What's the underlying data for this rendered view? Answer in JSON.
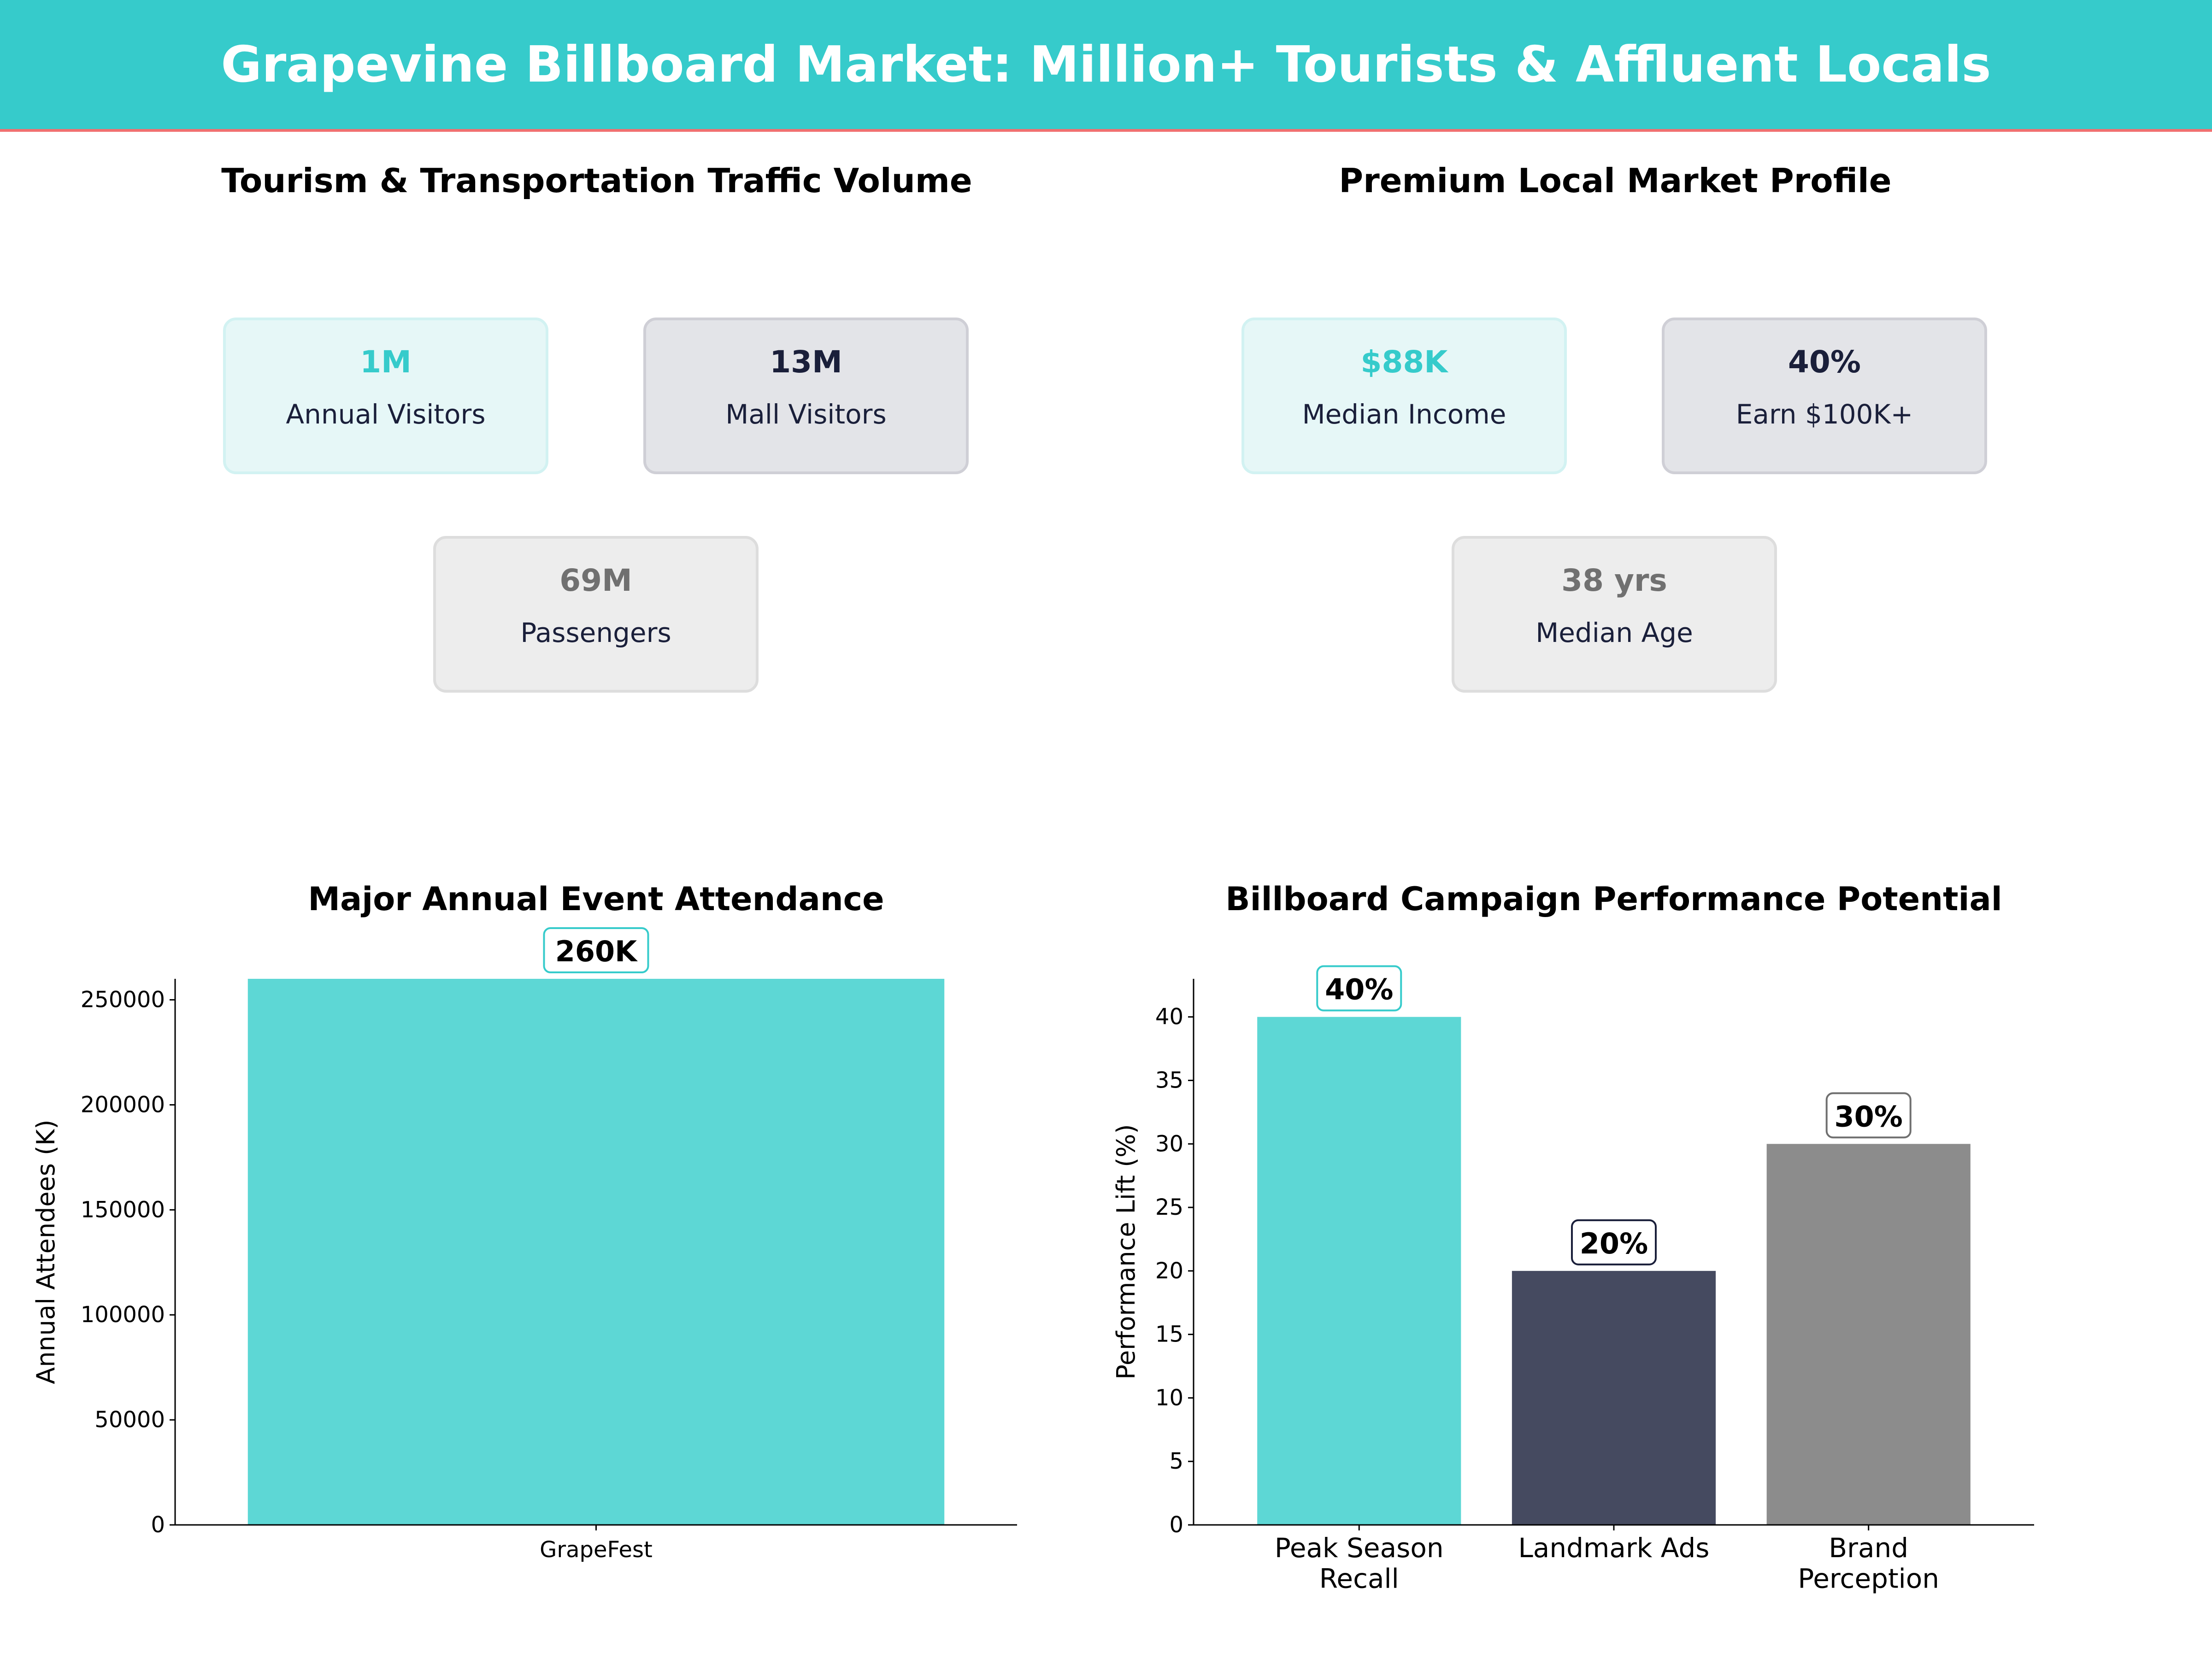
{
  "title": "Grapevine Billboard Market: Million+ Tourists & Affluent Locals",
  "colors": {
    "teal": "#36CBCB",
    "navy": "#1a1f3a",
    "gray": "#707070",
    "red_line": "#F07070"
  },
  "tourism": {
    "title": "Tourism & Transportation Traffic Volume",
    "cards": [
      {
        "value": "1M",
        "label": "Annual Visitors"
      },
      {
        "value": "13M",
        "label": "Mall Visitors"
      },
      {
        "value": "69M",
        "label": "Passengers"
      }
    ]
  },
  "local": {
    "title": "Premium Local Market Profile",
    "cards": [
      {
        "value": "$88K",
        "label": "Median Income"
      },
      {
        "value": "40%",
        "label": "Earn $100K+"
      },
      {
        "value": "38 yrs",
        "label": "Median Age"
      }
    ]
  },
  "chart_data": [
    {
      "type": "bar",
      "title": "Major Annual Event Attendance",
      "xlabel": "",
      "ylabel": "Annual Attendees (K)",
      "categories": [
        "GrapeFest"
      ],
      "values": [
        260000
      ],
      "data_labels": [
        "260K"
      ],
      "ylim": [
        0,
        260000
      ],
      "yticks": [
        0,
        50000,
        100000,
        150000,
        200000,
        250000
      ],
      "grid": false,
      "colors": [
        "#5DD7D5"
      ],
      "label_borders": [
        "#36CBCB"
      ]
    },
    {
      "type": "bar",
      "title": "Billboard Campaign Performance Potential",
      "xlabel": "",
      "ylabel": "Performance Lift (%)",
      "categories": [
        "Peak Season\nRecall",
        "Landmark Ads",
        "Brand\nPerception"
      ],
      "values": [
        40,
        20,
        30
      ],
      "data_labels": [
        "40%",
        "20%",
        "30%"
      ],
      "ylim": [
        0,
        43
      ],
      "yticks": [
        0,
        5,
        10,
        15,
        20,
        25,
        30,
        35,
        40
      ],
      "grid": false,
      "colors": [
        "#5DD7D5",
        "#454A60",
        "#8C8C8C"
      ],
      "label_borders": [
        "#36CBCB",
        "#1a1f3a",
        "#707070"
      ]
    }
  ]
}
